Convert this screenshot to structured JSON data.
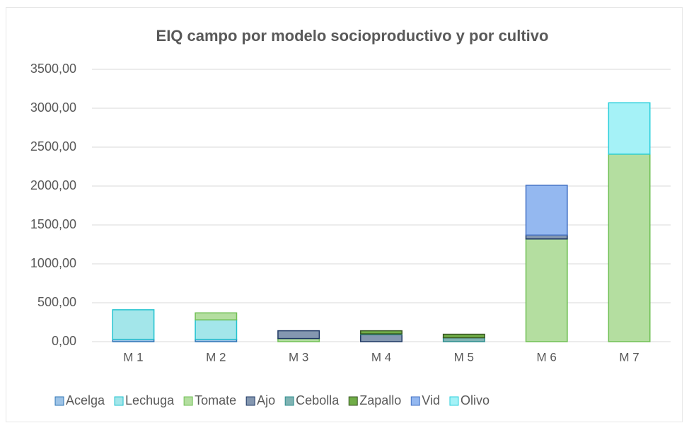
{
  "chart_data": {
    "type": "stacked_bar",
    "title": "EIQ campo  por  modelo socioproductivo  y por  cultivo",
    "categories": [
      "M 1",
      "M 2",
      "M 3",
      "M 4",
      "M 5",
      "M 6",
      "M 7"
    ],
    "series": [
      {
        "name": "Acelga",
        "color": "#9dc3e6",
        "border": "#2e75b6",
        "values": [
          30,
          30,
          0,
          0,
          0,
          0,
          0
        ]
      },
      {
        "name": "Lechuga",
        "color": "#a3e6ea",
        "border": "#22c3cf",
        "values": [
          380,
          250,
          0,
          0,
          0,
          0,
          0
        ]
      },
      {
        "name": "Tomate",
        "color": "#b4dea0",
        "border": "#70c055",
        "values": [
          0,
          90,
          40,
          0,
          0,
          1320,
          2410
        ]
      },
      {
        "name": "Ajo",
        "color": "#8497b0",
        "border": "#1f3864",
        "values": [
          0,
          0,
          100,
          90,
          0,
          50,
          0
        ]
      },
      {
        "name": "Cebolla",
        "color": "#7fb3b3",
        "border": "#2f8f8f",
        "values": [
          0,
          0,
          0,
          10,
          50,
          0,
          0
        ]
      },
      {
        "name": "Zapallo",
        "color": "#70ad47",
        "border": "#375623",
        "values": [
          0,
          0,
          0,
          40,
          45,
          0,
          0
        ]
      },
      {
        "name": "Vid",
        "color": "#94b8f0",
        "border": "#4472c4",
        "values": [
          0,
          0,
          0,
          0,
          0,
          640,
          0
        ]
      },
      {
        "name": "Olivo",
        "color": "#a5f2f7",
        "border": "#2ed0dc",
        "values": [
          0,
          0,
          0,
          0,
          0,
          0,
          660
        ]
      }
    ],
    "ylim": [
      0,
      3500
    ],
    "yticks": [
      {
        "value": 0,
        "label": "0,00"
      },
      {
        "value": 500,
        "label": "500,00"
      },
      {
        "value": 1000,
        "label": "1000,00"
      },
      {
        "value": 1500,
        "label": "1500,00"
      },
      {
        "value": 2000,
        "label": "2000,00"
      },
      {
        "value": 2500,
        "label": "2500,00"
      },
      {
        "value": 3000,
        "label": "3000,00"
      },
      {
        "value": 3500,
        "label": "3500,00"
      }
    ],
    "grid": true,
    "legend": "bottom"
  }
}
